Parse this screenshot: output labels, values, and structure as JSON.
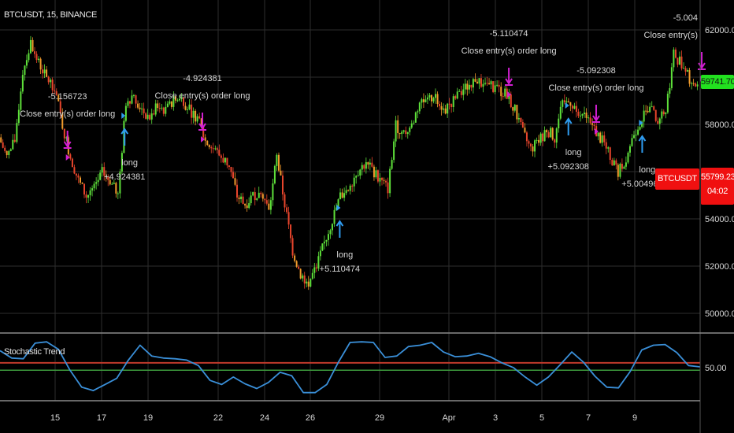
{
  "header": {
    "symbol_title": "BTCUSDT, 15, BINANCE"
  },
  "price_tags": {
    "last_value": "59741.70",
    "symbol": "BTCUSDT",
    "current_price": "55799.23",
    "countdown": "04:02"
  },
  "colors": {
    "background": "#000000",
    "grid": "#2e2e2e",
    "up_candle": "#5ee03a",
    "down_candle": "#e8452c",
    "long_arrow": "#2f9cf0",
    "close_arrow": "#d21fd2",
    "stoch_line": "#3a8fd8",
    "stoch_upper": "#c0392b",
    "stoch_lower": "#3d9a3d",
    "last_tag": "#22e01f",
    "current_tag": "#f01010"
  },
  "chart_data": [
    {
      "type": "candlestick",
      "title": "BTCUSDT, 15, BINANCE",
      "ylim": [
        49200,
        63200
      ],
      "y_ticks": [
        "62000.00",
        "58000.00",
        "54000.00",
        "52000.00",
        "50000.00"
      ],
      "x_ticks": [
        "15",
        "17",
        "19",
        "22",
        "24",
        "26",
        "29",
        "Apr",
        "3",
        "5",
        "7",
        "9"
      ],
      "grid": true,
      "close_series_approx": [
        57450,
        56620,
        57290,
        60270,
        61440,
        60610,
        59940,
        59610,
        57950,
        56620,
        55630,
        54960,
        55290,
        55960,
        55630,
        54960,
        58950,
        59280,
        58610,
        58280,
        58780,
        58610,
        58950,
        59110,
        58610,
        58280,
        57290,
        56950,
        56620,
        56290,
        54960,
        54630,
        54960,
        55290,
        54300,
        56620,
        54630,
        52640,
        51640,
        51310,
        51970,
        52970,
        53970,
        54960,
        55290,
        55960,
        56290,
        56120,
        55630,
        55290,
        57950,
        57620,
        57950,
        58950,
        58950,
        59280,
        58610,
        58950,
        59280,
        59610,
        59940,
        59780,
        59610,
        59440,
        59280,
        58610,
        57620,
        56950,
        57290,
        57780,
        57450,
        58950,
        58950,
        58610,
        58280,
        57780,
        57290,
        56620,
        55960,
        56620,
        57620,
        58280,
        58610,
        58280,
        58610,
        60940,
        60610,
        59940,
        59610
      ],
      "trades": [
        {
          "kind": "close",
          "bar": 8.5,
          "price": 57000,
          "value": "-5.156723",
          "text": "Close entry(s) order long"
        },
        {
          "kind": "long",
          "bar": 15.7,
          "price": 57833,
          "text": "long",
          "value": "+4.924381"
        },
        {
          "kind": "close",
          "bar": 25.5,
          "price": 57767,
          "value": "-4.924381",
          "text": "Close entry(s) order long"
        },
        {
          "kind": "long",
          "bar": 42.8,
          "price": 53933,
          "text": "long",
          "value": "+5.110474"
        },
        {
          "kind": "close",
          "bar": 64.1,
          "price": 59667,
          "value": "-5.110474",
          "text": "Close entry(s) order long"
        },
        {
          "kind": "long",
          "bar": 71.6,
          "price": 58267,
          "text": "long",
          "value": "+5.092308"
        },
        {
          "kind": "close",
          "bar": 75.1,
          "price": 58100,
          "value": "-5.092308",
          "text": "Close entry(s) order long"
        },
        {
          "kind": "long",
          "bar": 80.9,
          "price": 57533,
          "text": "long",
          "value": "+5.004967"
        },
        {
          "kind": "close",
          "bar": 88.4,
          "price": 60333,
          "value": "-5.004",
          "text": "Close entry(s)"
        }
      ]
    },
    {
      "type": "line",
      "title": "Stochastic Trend",
      "ylim": [
        0,
        100
      ],
      "last_value_label": "50.00",
      "upper_level": 56,
      "lower_level": 45,
      "values": [
        74,
        63,
        62,
        85,
        87,
        76,
        45,
        20,
        15,
        24,
        33,
        60,
        82,
        66,
        63,
        62,
        60,
        52,
        30,
        24,
        35,
        25,
        18,
        27,
        42,
        37,
        12,
        12,
        24,
        57,
        86,
        87,
        86,
        64,
        66,
        80,
        82,
        86,
        72,
        65,
        66,
        70,
        65,
        56,
        49,
        35,
        23,
        35,
        53,
        72,
        57,
        36,
        20,
        19,
        43,
        75,
        82,
        83,
        71,
        52,
        50
      ]
    }
  ]
}
